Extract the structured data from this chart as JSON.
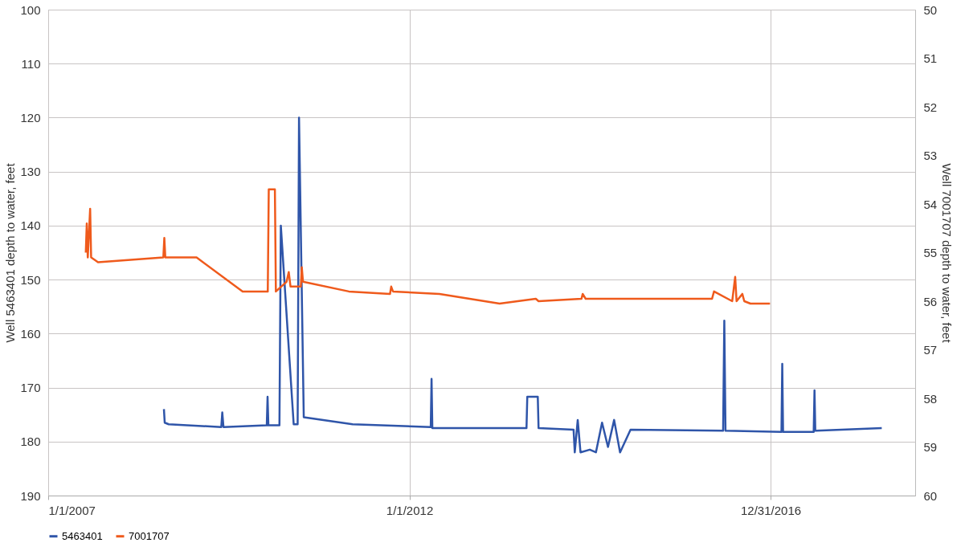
{
  "chart_data": {
    "type": "line",
    "ylabel": "Well 5463401 depth to water, feet",
    "y2label": "Well 7001707 depth to water, feet",
    "xlim": [
      "2007-01-01",
      "2019-01-01"
    ],
    "xticks": [
      {
        "value": "2007-01-01",
        "label": "1/1/2007"
      },
      {
        "value": "2012-01-01",
        "label": "1/1/2012"
      },
      {
        "value": "2016-12-31",
        "label": "12/31/2016"
      }
    ],
    "ylim": [
      190,
      100
    ],
    "yticks": [
      100,
      110,
      120,
      130,
      140,
      150,
      160,
      170,
      180,
      190
    ],
    "y2lim": [
      60,
      50
    ],
    "y2ticks": [
      50,
      51,
      52,
      53,
      54,
      55,
      56,
      57,
      58,
      59,
      60
    ],
    "grid": true,
    "legend": "bottom",
    "series": [
      {
        "name": "5463401",
        "color": "#2f55a9",
        "x": [
          "2008-08-08",
          "2008-08-12",
          "2008-09-01",
          "2009-05-25",
          "2009-05-30",
          "2009-06-05",
          "2010-01-10",
          "2010-01-14",
          "2010-01-18",
          "2010-03-15",
          "2010-03-22",
          "2010-05-26",
          "2010-06-15",
          "2010-06-22",
          "2010-07-16",
          "2011-03-20",
          "2012-04-18",
          "2012-04-22",
          "2012-04-26",
          "2013-08-15",
          "2013-08-19",
          "2013-10-11",
          "2013-10-15",
          "2014-04-10",
          "2014-04-16",
          "2014-05-01",
          "2014-05-15",
          "2014-07-01",
          "2014-08-01",
          "2014-09-01",
          "2014-10-01",
          "2014-11-01",
          "2014-12-01",
          "2015-01-23",
          "2016-05-05",
          "2016-05-11",
          "2016-05-17",
          "2017-02-24",
          "2017-02-28",
          "2017-03-04",
          "2017-08-06",
          "2017-08-10",
          "2017-08-14",
          "2018-07-16"
        ],
        "values": [
          174,
          176.5,
          176.8,
          177.3,
          174.6,
          177.3,
          177,
          171.7,
          177,
          177,
          140,
          176.8,
          176.8,
          120,
          175.5,
          176.8,
          177.3,
          168.4,
          177.5,
          177.5,
          171.7,
          171.7,
          177.5,
          177.8,
          182,
          176,
          182,
          181.5,
          182,
          176.5,
          181,
          176,
          182,
          177.8,
          178,
          157.6,
          178,
          178.2,
          165.6,
          178.2,
          178.2,
          170.5,
          178,
          177.5
        ]
      },
      {
        "name": "7001707",
        "color": "#ef5a1c",
        "axis": "y2",
        "x": [
          "2007-07-10",
          "2007-07-15",
          "2007-07-20",
          "2007-08-01",
          "2007-08-06",
          "2007-09-10",
          "2008-08-05",
          "2008-08-10",
          "2008-08-15",
          "2009-01-20",
          "2009-09-10",
          "2010-01-15",
          "2010-01-20",
          "2010-02-20",
          "2010-02-25",
          "2010-04-20",
          "2010-05-01",
          "2010-05-10",
          "2010-07-01",
          "2010-07-06",
          "2010-07-12",
          "2011-03-01",
          "2011-09-25",
          "2011-10-01",
          "2011-10-10",
          "2012-06-01",
          "2013-04-01",
          "2013-10-01",
          "2013-10-15",
          "2014-05-20",
          "2014-05-26",
          "2014-06-10",
          "2016-03-10",
          "2016-03-20",
          "2016-06-20",
          "2016-07-05",
          "2016-07-12",
          "2016-08-10",
          "2016-08-20",
          "2016-09-20",
          "2016-12-28"
        ],
        "values": [
          55.0,
          54.4,
          55.1,
          54.1,
          55.1,
          55.2,
          55.1,
          54.7,
          55.1,
          55.1,
          55.8,
          55.8,
          53.7,
          53.7,
          55.8,
          55.6,
          55.4,
          55.7,
          55.7,
          55.3,
          55.6,
          55.8,
          55.85,
          55.7,
          55.8,
          55.85,
          56.05,
          55.95,
          56.0,
          55.95,
          55.85,
          55.95,
          55.95,
          55.8,
          56.0,
          55.5,
          56.0,
          55.85,
          56.0,
          56.05,
          56.05
        ]
      }
    ]
  }
}
